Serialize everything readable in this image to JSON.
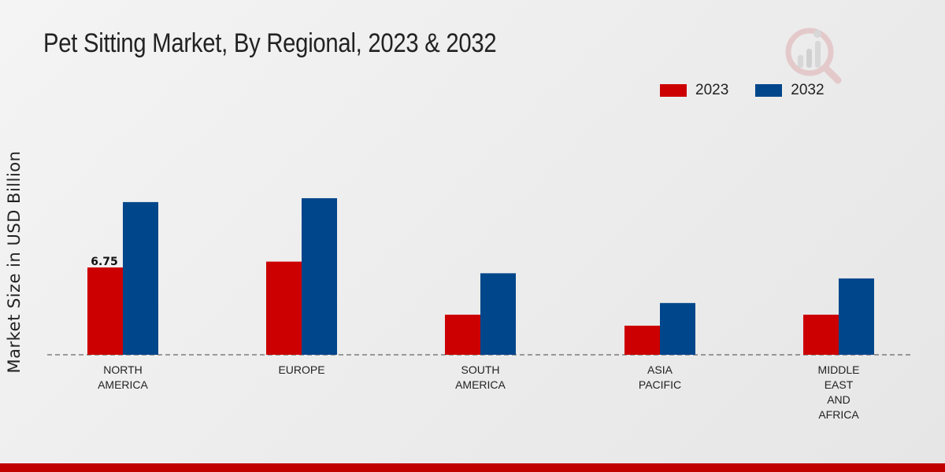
{
  "chart_data": {
    "type": "bar",
    "title": "Pet Sitting Market, By Regional, 2023 & 2032",
    "xlabel": "",
    "ylabel": "Market Size in USD Billion",
    "categories": [
      [
        "NORTH",
        "AMERICA"
      ],
      [
        "EUROPE"
      ],
      [
        "SOUTH",
        "AMERICA"
      ],
      [
        "ASIA",
        "PACIFIC"
      ],
      [
        "MIDDLE",
        "EAST",
        "AND",
        "AFRICA"
      ]
    ],
    "series": [
      {
        "name": "2023",
        "color": "#cc0000",
        "values": [
          6.75,
          7.2,
          3.1,
          2.25,
          3.1
        ]
      },
      {
        "name": "2032",
        "color": "#00468b",
        "values": [
          11.8,
          12.1,
          6.3,
          4.0,
          5.9
        ]
      }
    ],
    "data_labels": [
      {
        "series": 0,
        "index": 0,
        "text": "6.75"
      }
    ],
    "ylim": [
      0,
      20
    ],
    "grid": false,
    "legend_position": "top-right"
  }
}
